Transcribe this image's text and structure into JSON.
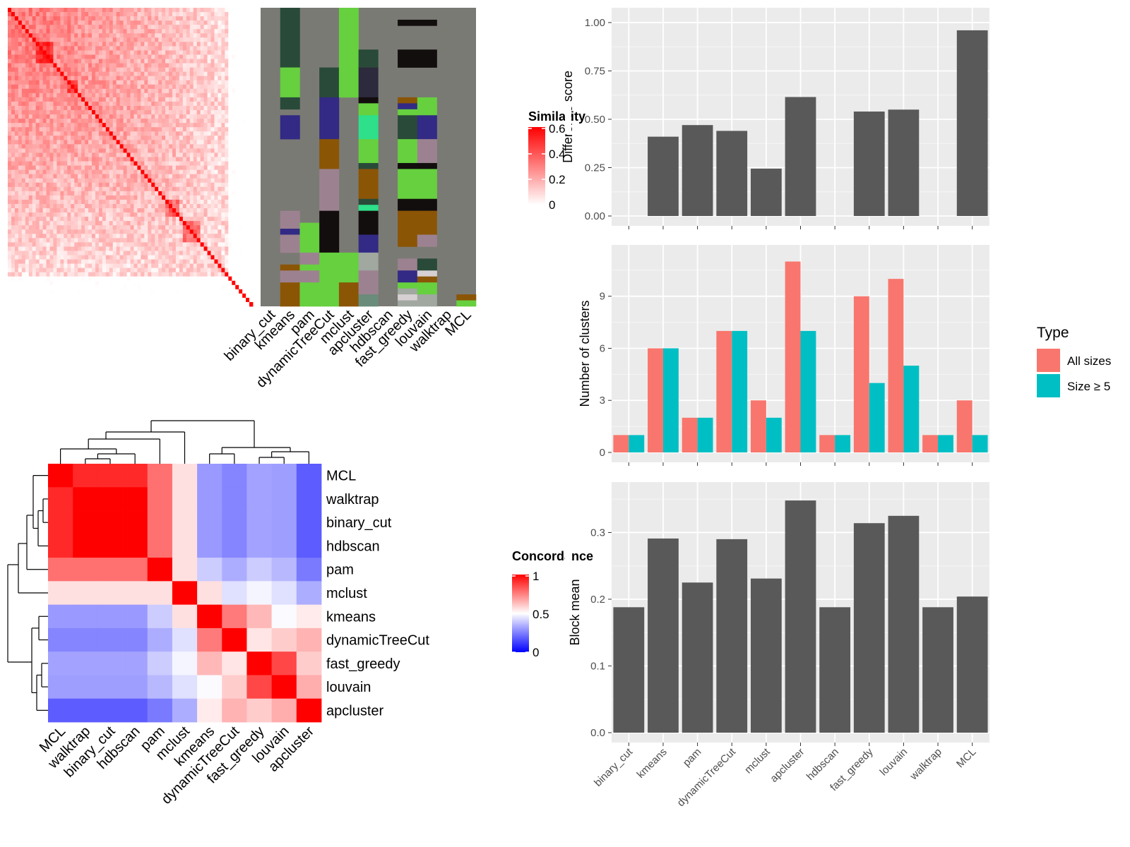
{
  "chart_data": [
    {
      "type": "heatmap",
      "description": "Cell-cell similarity heatmap (top-left)",
      "legend_title": "Similarity",
      "legend_ticks": [
        0,
        0.2,
        0.4,
        0.6
      ],
      "value_range": [
        0,
        0.6
      ],
      "colors": {
        "low": "#ffffff",
        "high": "#ff0000"
      }
    },
    {
      "type": "heatmap",
      "description": "Cluster assignment annotation columns (top-middle)",
      "columns": [
        "binary_cut",
        "kmeans",
        "pam",
        "dynamicTreeCut",
        "mclust",
        "apcluster",
        "hdbscan",
        "fast_greedy",
        "louvain",
        "walktrap",
        "MCL"
      ],
      "background": "#7a7a74"
    },
    {
      "type": "bar",
      "title": "",
      "categories": [
        "binary_cut",
        "kmeans",
        "pam",
        "dynamicTreeCut",
        "mclust",
        "apcluster",
        "hdbscan",
        "fast_greedy",
        "louvain",
        "walktrap",
        "MCL"
      ],
      "values": [
        null,
        0.41,
        0.47,
        0.44,
        0.245,
        0.615,
        null,
        0.54,
        0.55,
        null,
        0.96
      ],
      "ylabel": "Difference score",
      "ylim": [
        0,
        1.04
      ],
      "yticks": [
        "0.00",
        "0.25",
        "0.50",
        "0.75",
        "1.00"
      ],
      "bar_color": "#595959"
    },
    {
      "type": "bar",
      "title": "",
      "categories": [
        "binary_cut",
        "kmeans",
        "pam",
        "dynamicTreeCut",
        "mclust",
        "apcluster",
        "hdbscan",
        "fast_greedy",
        "louvain",
        "walktrap",
        "MCL"
      ],
      "series": [
        {
          "name": "All sizes",
          "values": [
            1,
            6,
            2,
            7,
            3,
            11,
            1,
            9,
            10,
            1,
            3
          ],
          "color": "#f8766d"
        },
        {
          "name": "Size ≥ 5",
          "values": [
            1,
            6,
            2,
            7,
            2,
            7,
            1,
            4,
            5,
            1,
            1
          ],
          "color": "#00bfc4"
        }
      ],
      "ylabel": "Number of clusters",
      "ylim": [
        0,
        11.55
      ],
      "yticks": [
        "0",
        "3",
        "6",
        "9"
      ],
      "legend_title": "Type",
      "legend_position": "right"
    },
    {
      "type": "bar",
      "title": "",
      "categories": [
        "binary_cut",
        "kmeans",
        "pam",
        "dynamicTreeCut",
        "mclust",
        "apcluster",
        "hdbscan",
        "fast_greedy",
        "louvain",
        "walktrap",
        "MCL"
      ],
      "values": [
        0.188,
        0.291,
        0.225,
        0.29,
        0.231,
        0.348,
        0.188,
        0.314,
        0.325,
        0.188,
        0.204
      ],
      "ylabel": "Block mean",
      "ylim": [
        0,
        0.365
      ],
      "yticks": [
        "0.0",
        "0.1",
        "0.2",
        "0.3"
      ],
      "bar_color": "#595959"
    },
    {
      "type": "heatmap",
      "description": "Concordance between clustering methods (bottom-left), clustered with dendrograms",
      "rows": [
        "MCL",
        "walktrap",
        "binary_cut",
        "hdbscan",
        "pam",
        "mclust",
        "kmeans",
        "dynamicTreeCut",
        "fast_greedy",
        "louvain",
        "apcluster"
      ],
      "cols": [
        "MCL",
        "walktrap",
        "binary_cut",
        "hdbscan",
        "pam",
        "mclust",
        "kmeans",
        "dynamicTreeCut",
        "fast_greedy",
        "louvain",
        "apcluster"
      ],
      "values": [
        [
          1.0,
          0.92,
          0.92,
          0.92,
          0.78,
          0.56,
          0.3,
          0.26,
          0.32,
          0.31,
          0.18
        ],
        [
          0.92,
          1.0,
          1.0,
          1.0,
          0.78,
          0.56,
          0.3,
          0.26,
          0.32,
          0.31,
          0.18
        ],
        [
          0.92,
          1.0,
          1.0,
          1.0,
          0.78,
          0.56,
          0.3,
          0.26,
          0.32,
          0.31,
          0.18
        ],
        [
          0.92,
          1.0,
          1.0,
          1.0,
          0.78,
          0.56,
          0.3,
          0.26,
          0.32,
          0.31,
          0.18
        ],
        [
          0.78,
          0.78,
          0.78,
          0.78,
          1.0,
          0.56,
          0.4,
          0.34,
          0.4,
          0.36,
          0.24
        ],
        [
          0.56,
          0.56,
          0.56,
          0.56,
          0.56,
          1.0,
          0.56,
          0.44,
          0.48,
          0.44,
          0.34
        ],
        [
          0.3,
          0.3,
          0.3,
          0.3,
          0.4,
          0.56,
          1.0,
          0.76,
          0.64,
          0.49,
          0.54
        ],
        [
          0.26,
          0.26,
          0.26,
          0.26,
          0.34,
          0.44,
          0.76,
          1.0,
          0.55,
          0.6,
          0.65
        ],
        [
          0.32,
          0.32,
          0.32,
          0.32,
          0.4,
          0.48,
          0.64,
          0.55,
          1.0,
          0.86,
          0.6
        ],
        [
          0.31,
          0.31,
          0.31,
          0.31,
          0.36,
          0.44,
          0.49,
          0.6,
          0.86,
          1.0,
          0.66
        ],
        [
          0.18,
          0.18,
          0.18,
          0.18,
          0.24,
          0.34,
          0.54,
          0.65,
          0.6,
          0.66,
          1.0
        ]
      ],
      "legend_title": "Concordance",
      "legend_ticks": [
        0,
        0.5,
        1
      ],
      "colors": {
        "low": "#0000ff",
        "mid": "#ffffff",
        "high": "#ff0000"
      }
    }
  ]
}
